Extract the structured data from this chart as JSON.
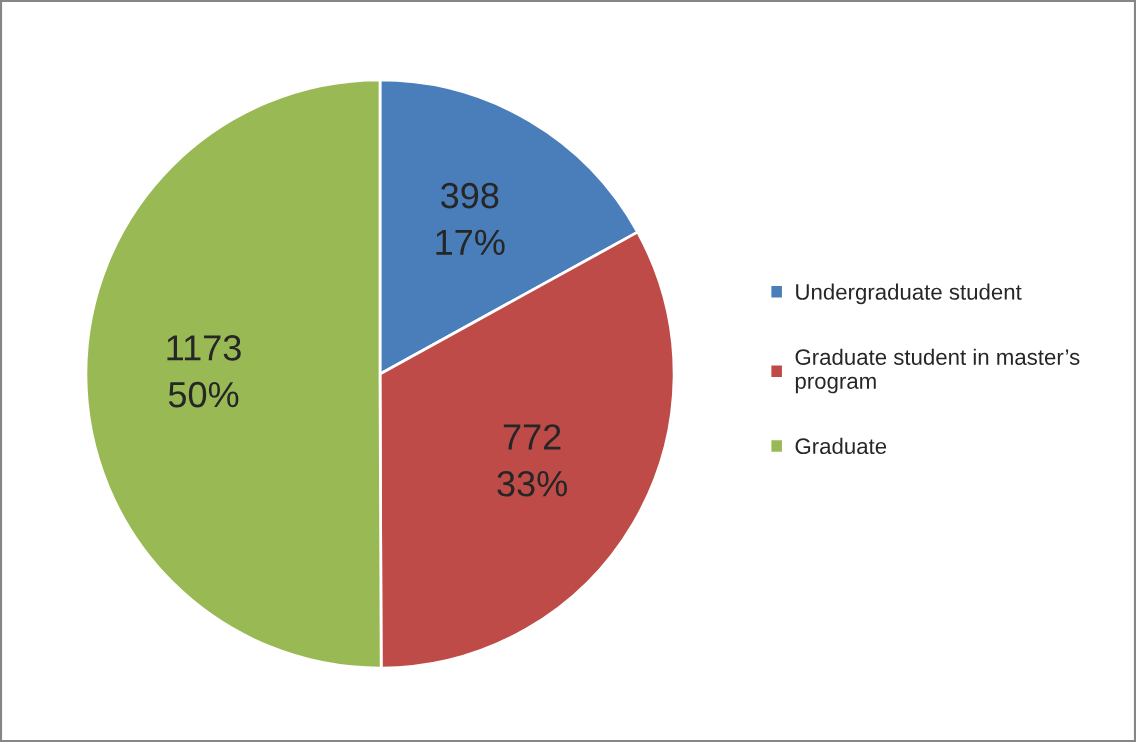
{
  "chart_data": {
    "type": "pie",
    "categories": [
      "Undergraduate student",
      "Graduate student in master’s program",
      "Graduate"
    ],
    "values": [
      398,
      772,
      1173
    ],
    "colors": [
      "#4a7ebb",
      "#be4b48",
      "#98b954"
    ],
    "value_labels": [
      "398\n17%",
      "772\n33%",
      "1173\n50%"
    ],
    "legend": "right"
  }
}
